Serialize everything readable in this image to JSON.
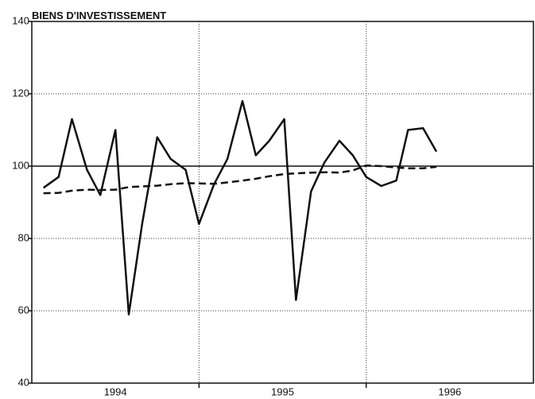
{
  "chart_data": {
    "type": "line",
    "title": "BIENS D'INVESTISSEMENT",
    "x": [
      1994.07,
      1994.16,
      1994.24,
      1994.33,
      1994.41,
      1994.5,
      1994.58,
      1994.66,
      1994.75,
      1994.83,
      1994.92,
      1995.0,
      1995.09,
      1995.17,
      1995.26,
      1995.34,
      1995.42,
      1995.51,
      1995.58,
      1995.67,
      1995.75,
      1995.84,
      1995.92,
      1996.0,
      1996.09,
      1996.18,
      1996.25,
      1996.34,
      1996.42
    ],
    "series": [
      {
        "color": "#111111",
        "dash": false,
        "values": [
          94,
          97,
          113,
          99,
          92,
          110,
          59,
          84,
          108,
          102,
          99,
          84,
          95,
          102,
          118,
          103,
          107,
          113,
          63,
          93,
          101,
          107,
          103,
          97,
          94.5,
          96,
          110,
          110.5,
          104
        ]
      },
      {
        "color": "#111111",
        "dash": true,
        "values": [
          92.5,
          92.6,
          93.2,
          93.5,
          93.4,
          93.5,
          94.2,
          94.4,
          94.6,
          95.0,
          95.3,
          95.2,
          95.1,
          95.5,
          96.0,
          96.5,
          97.2,
          97.8,
          98.0,
          98.2,
          98.3,
          98.2,
          98.8,
          100.2,
          100.0,
          99.6,
          99.4,
          99.4,
          99.8
        ]
      }
    ],
    "xlim": [
      1994,
      1997
    ],
    "xticks": [
      {
        "value": 1994.5,
        "label": "1994"
      },
      {
        "value": 1995.5,
        "label": "1995"
      },
      {
        "value": 1996.5,
        "label": "1996"
      }
    ],
    "xgrid": [
      1995,
      1996
    ],
    "ylim": [
      40,
      140
    ],
    "yticks": [
      40,
      60,
      80,
      100,
      120,
      140
    ],
    "reference_line": 100,
    "grid": true
  }
}
